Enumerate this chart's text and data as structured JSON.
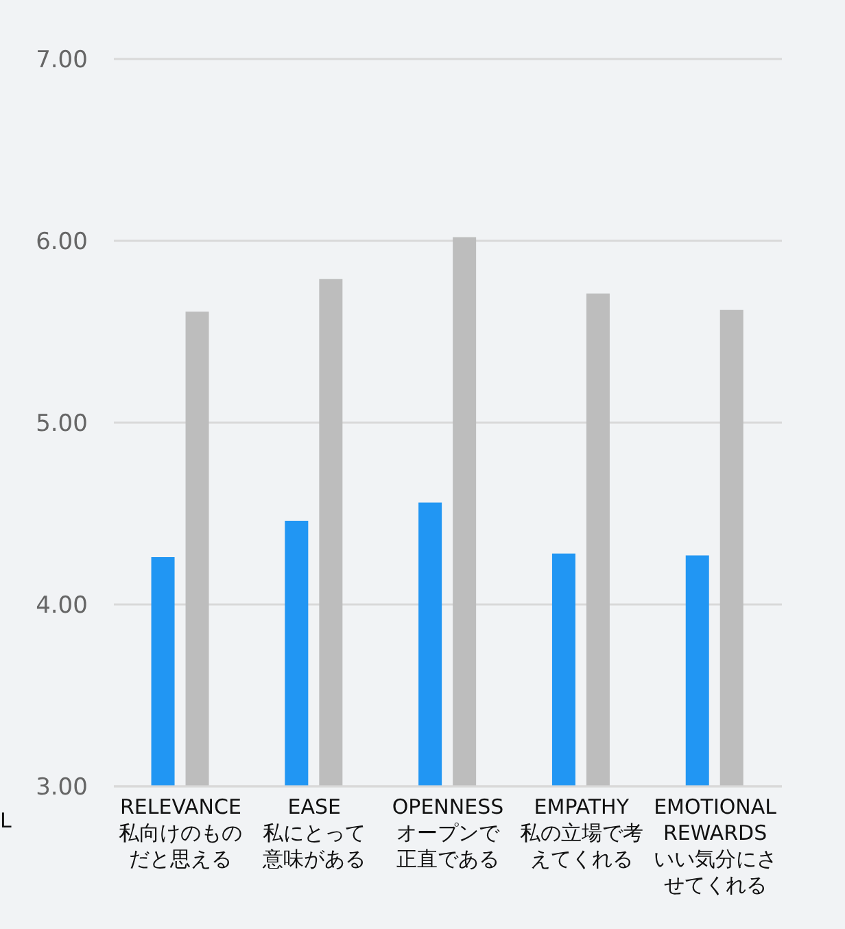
{
  "chart_data": {
    "type": "bar",
    "categories": [
      "RELEVANCE\n私向けのものだと思える",
      "EASE\n私にとって意味がある",
      "OPENNESS\nオープンで正直である",
      "EMPATHY\n私の立場で考えてくれる",
      "EMOTIONAL\nREWARDS\nいい気分にさせてくれる"
    ],
    "series": [
      {
        "color": "#2196f3",
        "values": [
          4.26,
          4.46,
          4.56,
          4.28,
          4.27
        ]
      },
      {
        "color": "#bdbdbd",
        "values": [
          5.61,
          5.79,
          6.02,
          5.71,
          5.62
        ]
      }
    ],
    "ylim": [
      3,
      7
    ],
    "yticks": [
      {
        "value": 3,
        "label": "3.00"
      },
      {
        "value": 4,
        "label": "4.00"
      },
      {
        "value": 5,
        "label": "5.00"
      },
      {
        "value": 6,
        "label": "6.00"
      },
      {
        "value": 7,
        "label": "7.00"
      }
    ],
    "grid": "y",
    "legend": false,
    "annotations": [
      "L"
    ]
  }
}
